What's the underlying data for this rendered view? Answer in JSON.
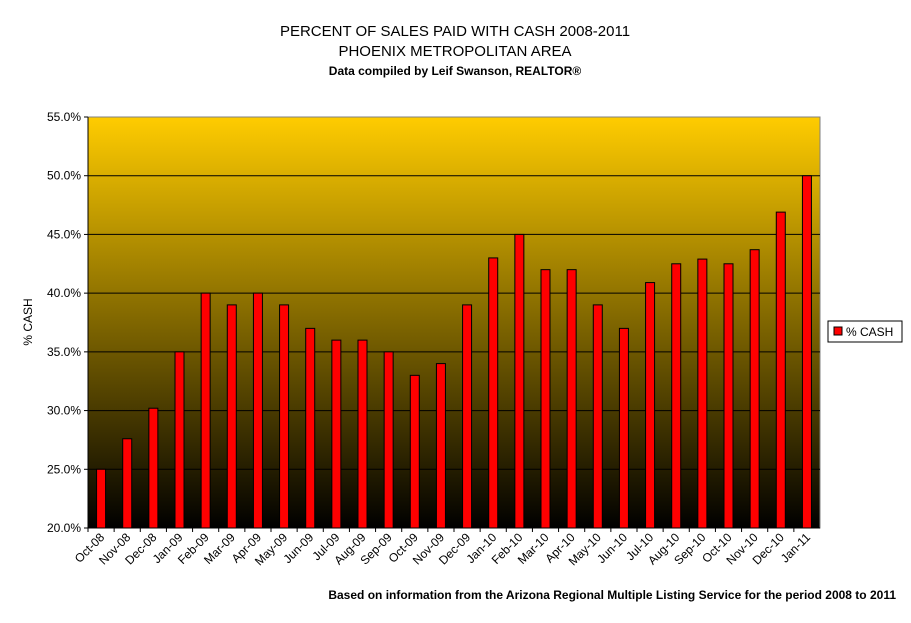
{
  "chart_data": {
    "type": "bar",
    "title": [
      "PERCENT OF SALES PAID WITH CASH 2008-2011",
      "PHOENIX METROPOLITAN AREA"
    ],
    "subtitle": "Data compiled by Leif Swanson, REALTOR®",
    "ylabel": "% CASH",
    "xlabel": "",
    "ylim": [
      20,
      55
    ],
    "y_ticks": [
      "20.0%",
      "25.0%",
      "30.0%",
      "35.0%",
      "40.0%",
      "45.0%",
      "50.0%",
      "55.0%"
    ],
    "y_tick_values": [
      20,
      25,
      30,
      35,
      40,
      45,
      50,
      55
    ],
    "grid": true,
    "legend_position": "right",
    "categories": [
      "Oct-08",
      "Nov-08",
      "Dec-08",
      "Jan-09",
      "Feb-09",
      "Mar-09",
      "Apr-09",
      "May-09",
      "Jun-09",
      "Jul-09",
      "Aug-09",
      "Sep-09",
      "Oct-09",
      "Nov-09",
      "Dec-09",
      "Jan-10",
      "Feb-10",
      "Mar-10",
      "Apr-10",
      "May-10",
      "Jun-10",
      "Jul-10",
      "Aug-10",
      "Sep-10",
      "Oct-10",
      "Nov-10",
      "Dec-10",
      "Jan-11"
    ],
    "series": [
      {
        "name": "% CASH",
        "values": [
          25.0,
          27.6,
          30.2,
          35.0,
          40.0,
          39.0,
          40.0,
          39.0,
          37.0,
          36.0,
          36.0,
          35.0,
          33.0,
          34.0,
          39.0,
          43.0,
          45.0,
          42.0,
          42.0,
          39.0,
          37.0,
          40.9,
          42.5,
          42.9,
          42.5,
          43.7,
          46.9,
          50.0
        ]
      }
    ],
    "footnote": "Based on information from the Arizona Regional Multiple Listing Service for the period 2008 to 2011"
  },
  "colors": {
    "bar_fill": "#ff0000",
    "bar_stroke": "#000000",
    "plot_top": "#ffcc00",
    "plot_bottom": "#000000",
    "gridline": "#000000"
  }
}
